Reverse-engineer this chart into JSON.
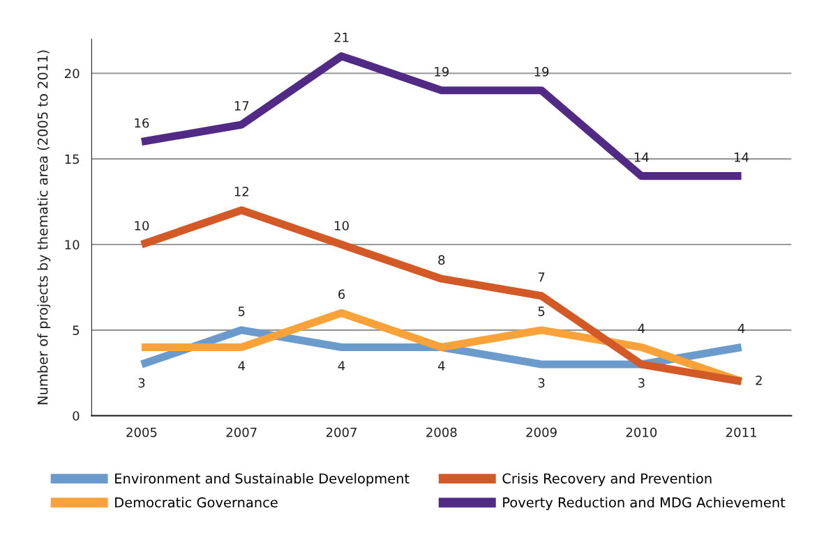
{
  "chart_data": {
    "type": "line",
    "ylabel": "Number of projects by thematic area (2005 to 2011)",
    "categories": [
      "2005",
      "2007",
      "2007",
      "2008",
      "2009",
      "2010",
      "2011"
    ],
    "series": [
      {
        "name": "Environment and Sustainable Development",
        "color": "#6b9bcc",
        "values": [
          3,
          5,
          4,
          4,
          3,
          3,
          4
        ],
        "value_labels": [
          "3",
          "5",
          "4",
          null,
          "3",
          "3",
          "4"
        ]
      },
      {
        "name": "Democratic Governance",
        "color": "#f9a23a",
        "values": [
          4,
          4,
          6,
          4,
          5,
          4,
          2
        ],
        "value_labels": [
          null,
          "4",
          "6",
          "4",
          "5",
          "4",
          "2"
        ]
      },
      {
        "name": "Crisis Recovery and Prevention",
        "color": "#d35a27",
        "values": [
          10,
          12,
          10,
          8,
          7,
          3,
          2
        ],
        "value_labels": [
          "10",
          "12",
          "10",
          "8",
          "7",
          null,
          null
        ]
      },
      {
        "name": "Poverty Reduction and MDG Achievement",
        "color": "#512a86",
        "values": [
          16,
          17,
          21,
          19,
          19,
          14,
          14
        ],
        "value_labels": [
          "16",
          "17",
          "21",
          "19",
          "19",
          "14",
          "14"
        ]
      }
    ],
    "ylim": [
      0,
      22
    ],
    "yticks": [
      0,
      5,
      10,
      15,
      20
    ],
    "grid": "y",
    "legend": "bottom",
    "marker": "none",
    "line_style": "solid"
  }
}
